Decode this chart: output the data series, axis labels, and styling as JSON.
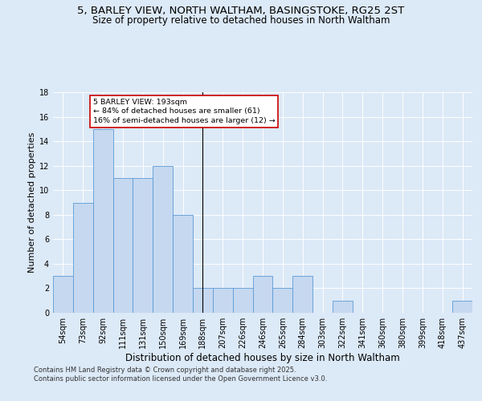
{
  "title_line1": "5, BARLEY VIEW, NORTH WALTHAM, BASINGSTOKE, RG25 2ST",
  "title_line2": "Size of property relative to detached houses in North Waltham",
  "xlabel": "Distribution of detached houses by size in North Waltham",
  "ylabel": "Number of detached properties",
  "categories": [
    "54sqm",
    "73sqm",
    "92sqm",
    "111sqm",
    "131sqm",
    "150sqm",
    "169sqm",
    "188sqm",
    "207sqm",
    "226sqm",
    "246sqm",
    "265sqm",
    "284sqm",
    "303sqm",
    "322sqm",
    "341sqm",
    "360sqm",
    "380sqm",
    "399sqm",
    "418sqm",
    "437sqm"
  ],
  "values": [
    3,
    9,
    15,
    11,
    11,
    12,
    8,
    2,
    2,
    2,
    3,
    2,
    3,
    0,
    1,
    0,
    0,
    0,
    0,
    0,
    1
  ],
  "bar_color": "#c5d8f0",
  "bar_edge_color": "#5b9bd5",
  "vline_index": 7,
  "vline_color": "#000000",
  "annotation_text": "5 BARLEY VIEW: 193sqm\n← 84% of detached houses are smaller (61)\n16% of semi-detached houses are larger (12) →",
  "annotation_box_color": "#ffffff",
  "annotation_box_edge": "#cc0000",
  "background_color": "#dce9f7",
  "plot_bg_color": "#dce9f7",
  "footer_text": "Contains HM Land Registry data © Crown copyright and database right 2025.\nContains public sector information licensed under the Open Government Licence v3.0.",
  "ylim": [
    0,
    18
  ],
  "yticks": [
    0,
    2,
    4,
    6,
    8,
    10,
    12,
    14,
    16,
    18
  ],
  "title_fontsize": 9.5,
  "subtitle_fontsize": 8.5,
  "xlabel_fontsize": 8.5,
  "ylabel_fontsize": 8.0,
  "tick_fontsize": 7.0,
  "footer_fontsize": 6.0,
  "annotation_fontsize": 6.8
}
